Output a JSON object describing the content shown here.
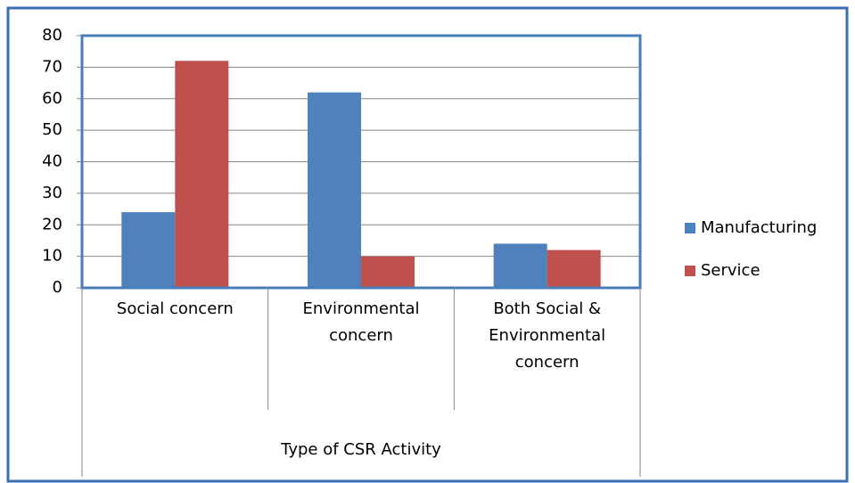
{
  "chart_data": {
    "type": "bar",
    "x_label": "Type of CSR Activity",
    "categories": [
      "Social concern",
      "Environmental concern",
      "Both Social & Environmental concern"
    ],
    "series": [
      {
        "name": "Manufacturing",
        "color": "#4f81bd",
        "values": [
          24,
          62,
          14
        ]
      },
      {
        "name": "Service",
        "color": "#c0504d",
        "values": [
          72,
          10,
          12
        ]
      }
    ],
    "ylim": [
      0,
      80
    ],
    "yticks": [
      0,
      10,
      20,
      30,
      40,
      50,
      60,
      70,
      80
    ],
    "grid": true,
    "legend": "right"
  }
}
